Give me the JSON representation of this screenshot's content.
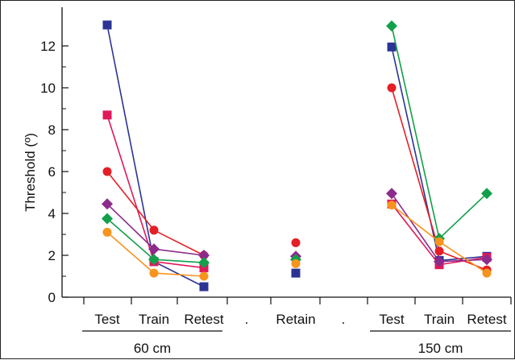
{
  "chart_data": {
    "type": "scatter",
    "ylabel": "Threshold (º)",
    "ylim": [
      0,
      13
    ],
    "yticks": [
      0,
      2,
      4,
      6,
      8,
      10,
      12
    ],
    "categories": [
      "Test",
      "Train",
      "Retest",
      ".",
      "Retain",
      ".",
      "Test",
      "Train",
      "Retest"
    ],
    "groups": [
      {
        "label": "60 cm",
        "categories": [
          "Test",
          "Train",
          "Retest"
        ]
      },
      {
        "label": "150 cm",
        "categories": [
          "Test",
          "Train",
          "Retest"
        ]
      }
    ],
    "grid": false,
    "series": [
      {
        "marker": "square",
        "color": "#2b3494",
        "values": [
          13.0,
          1.7,
          0.5,
          null,
          1.15,
          null,
          11.95,
          1.75,
          1.95
        ]
      },
      {
        "marker": "square",
        "color": "#e0185a",
        "values": [
          8.7,
          1.7,
          1.4,
          null,
          null,
          null,
          4.45,
          1.55,
          1.9
        ]
      },
      {
        "marker": "circle",
        "color": "#e41f26",
        "values": [
          6.0,
          3.2,
          2.0,
          null,
          2.6,
          null,
          10.0,
          2.2,
          1.3
        ]
      },
      {
        "marker": "diamond",
        "color": "#8c2b8c",
        "values": [
          4.45,
          2.3,
          2.0,
          null,
          1.95,
          null,
          4.95,
          1.7,
          1.8
        ]
      },
      {
        "marker": "diamond",
        "color": "#12a04b",
        "values": [
          3.75,
          1.8,
          1.65,
          null,
          1.8,
          null,
          12.95,
          2.8,
          4.95
        ]
      },
      {
        "marker": "circle",
        "color": "#f7941d",
        "values": [
          3.1,
          1.15,
          1.0,
          null,
          1.6,
          null,
          4.4,
          2.65,
          1.15
        ]
      }
    ]
  }
}
